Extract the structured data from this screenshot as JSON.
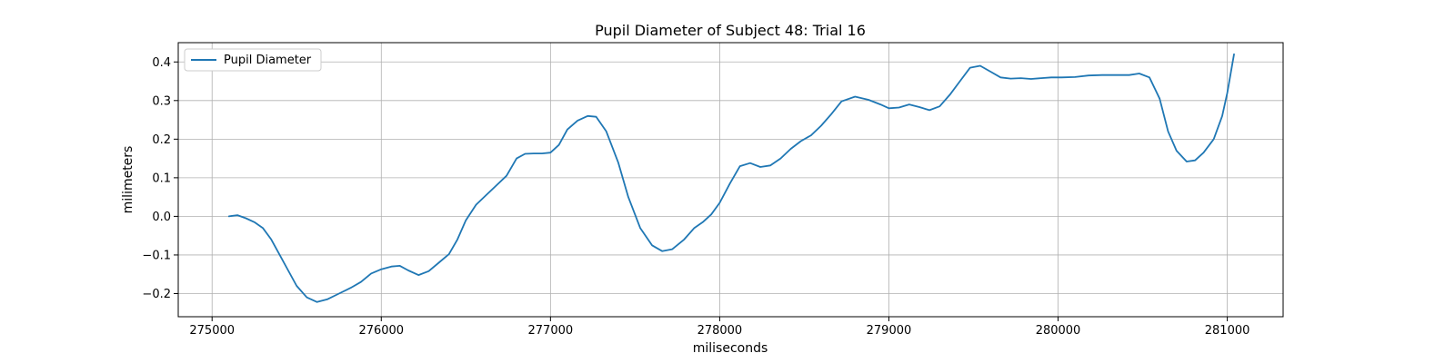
{
  "chart_data": {
    "type": "line",
    "title": "Pupil Diameter of Subject 48: Trial 16",
    "xlabel": "miliseconds",
    "ylabel": "milimeters",
    "xlim": [
      274800,
      281330
    ],
    "ylim": [
      -0.26,
      0.45
    ],
    "xticks": [
      275000,
      276000,
      277000,
      278000,
      279000,
      280000,
      281000
    ],
    "yticks": [
      -0.2,
      -0.1,
      0.0,
      0.1,
      0.2,
      0.3,
      0.4
    ],
    "ytick_labels": [
      "−0.2",
      "−0.1",
      "0.0",
      "0.1",
      "0.2",
      "0.3",
      "0.4"
    ],
    "grid": true,
    "legend": "top-left",
    "series": [
      {
        "name": "Pupil Diameter",
        "color": "#1f77b4",
        "points": [
          [
            275100,
            0.0
          ],
          [
            275150,
            0.003
          ],
          [
            275200,
            -0.005
          ],
          [
            275250,
            -0.015
          ],
          [
            275300,
            -0.03
          ],
          [
            275350,
            -0.06
          ],
          [
            275400,
            -0.1
          ],
          [
            275450,
            -0.14
          ],
          [
            275500,
            -0.18
          ],
          [
            275560,
            -0.21
          ],
          [
            275620,
            -0.222
          ],
          [
            275680,
            -0.215
          ],
          [
            275750,
            -0.2
          ],
          [
            275820,
            -0.185
          ],
          [
            275880,
            -0.17
          ],
          [
            275940,
            -0.148
          ],
          [
            276000,
            -0.137
          ],
          [
            276060,
            -0.13
          ],
          [
            276110,
            -0.128
          ],
          [
            276160,
            -0.14
          ],
          [
            276220,
            -0.152
          ],
          [
            276280,
            -0.142
          ],
          [
            276340,
            -0.12
          ],
          [
            276400,
            -0.098
          ],
          [
            276450,
            -0.06
          ],
          [
            276500,
            -0.01
          ],
          [
            276560,
            0.03
          ],
          [
            276620,
            0.055
          ],
          [
            276680,
            0.08
          ],
          [
            276740,
            0.105
          ],
          [
            276800,
            0.15
          ],
          [
            276850,
            0.162
          ],
          [
            276900,
            0.163
          ],
          [
            276950,
            0.163
          ],
          [
            277000,
            0.165
          ],
          [
            277050,
            0.185
          ],
          [
            277100,
            0.225
          ],
          [
            277160,
            0.248
          ],
          [
            277220,
            0.26
          ],
          [
            277270,
            0.258
          ],
          [
            277330,
            0.22
          ],
          [
            277400,
            0.14
          ],
          [
            277460,
            0.05
          ],
          [
            277530,
            -0.03
          ],
          [
            277600,
            -0.075
          ],
          [
            277660,
            -0.09
          ],
          [
            277720,
            -0.085
          ],
          [
            277790,
            -0.06
          ],
          [
            277850,
            -0.03
          ],
          [
            277900,
            -0.015
          ],
          [
            277950,
            0.005
          ],
          [
            278000,
            0.035
          ],
          [
            278060,
            0.085
          ],
          [
            278120,
            0.13
          ],
          [
            278180,
            0.138
          ],
          [
            278240,
            0.128
          ],
          [
            278300,
            0.132
          ],
          [
            278360,
            0.15
          ],
          [
            278420,
            0.175
          ],
          [
            278480,
            0.195
          ],
          [
            278540,
            0.21
          ],
          [
            278600,
            0.235
          ],
          [
            278660,
            0.265
          ],
          [
            278720,
            0.298
          ],
          [
            278800,
            0.31
          ],
          [
            278880,
            0.302
          ],
          [
            278950,
            0.29
          ],
          [
            279000,
            0.28
          ],
          [
            279060,
            0.282
          ],
          [
            279120,
            0.29
          ],
          [
            279180,
            0.283
          ],
          [
            279240,
            0.275
          ],
          [
            279300,
            0.285
          ],
          [
            279360,
            0.315
          ],
          [
            279420,
            0.35
          ],
          [
            279480,
            0.385
          ],
          [
            279540,
            0.39
          ],
          [
            279600,
            0.375
          ],
          [
            279660,
            0.36
          ],
          [
            279720,
            0.357
          ],
          [
            279780,
            0.358
          ],
          [
            279840,
            0.356
          ],
          [
            279900,
            0.358
          ],
          [
            279960,
            0.36
          ],
          [
            280020,
            0.36
          ],
          [
            280100,
            0.361
          ],
          [
            280180,
            0.365
          ],
          [
            280260,
            0.366
          ],
          [
            280340,
            0.366
          ],
          [
            280420,
            0.366
          ],
          [
            280480,
            0.37
          ],
          [
            280540,
            0.36
          ],
          [
            280600,
            0.305
          ],
          [
            280650,
            0.22
          ],
          [
            280700,
            0.17
          ],
          [
            280760,
            0.142
          ],
          [
            280810,
            0.145
          ],
          [
            280860,
            0.165
          ],
          [
            280920,
            0.2
          ],
          [
            280970,
            0.26
          ],
          [
            281000,
            0.32
          ],
          [
            281040,
            0.42
          ]
        ]
      }
    ]
  }
}
